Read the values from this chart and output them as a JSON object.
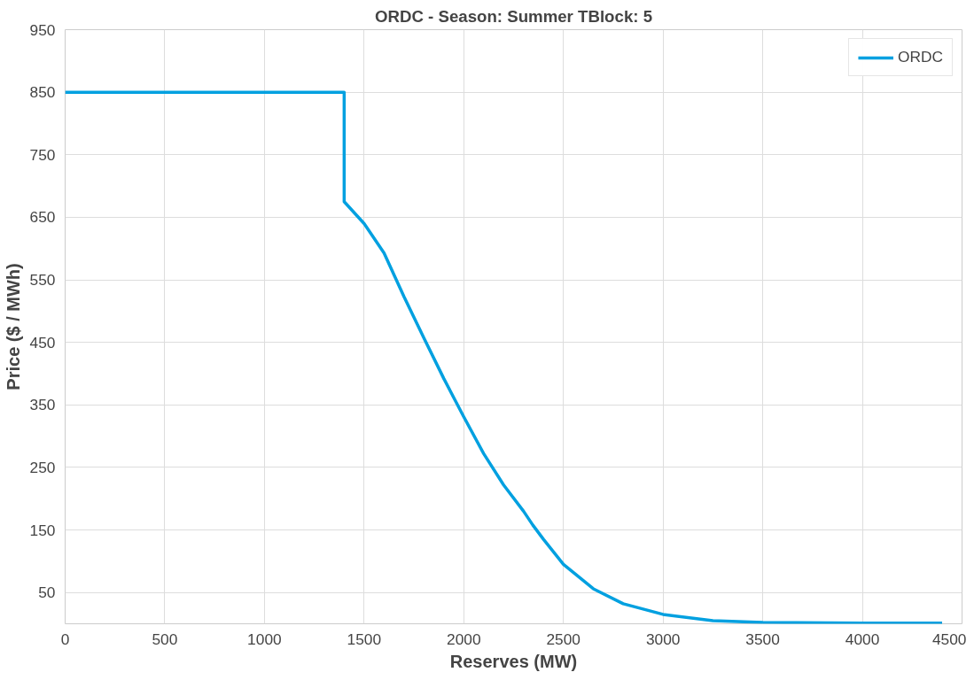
{
  "chart_data": {
    "type": "line",
    "title": "ORDC - Season: Summer TBlock: 5",
    "xlabel": "Reserves (MW)",
    "ylabel": "Price ($ / MWh)",
    "xlim": [
      0,
      4500
    ],
    "ylim": [
      0,
      950
    ],
    "xticks": [
      0,
      500,
      1000,
      1500,
      2000,
      2500,
      3000,
      3500,
      4000,
      4500
    ],
    "yticks": [
      50,
      150,
      250,
      350,
      450,
      550,
      650,
      750,
      850,
      950
    ],
    "grid": true,
    "legend": "top right",
    "line_style": "solid",
    "series": [
      {
        "name": "ORDC",
        "color": "#00a0e0",
        "x": [
          0,
          1400,
          1400,
          1500,
          1600,
          1700,
          1800,
          1900,
          2000,
          2100,
          2200,
          2300,
          2346,
          2400,
          2500,
          2650,
          2800,
          3000,
          3250,
          3500,
          4000,
          4400
        ],
        "values": [
          850,
          850,
          675,
          640,
          593,
          523,
          457,
          392,
          331,
          272,
          222,
          180,
          158,
          135,
          95,
          56,
          32,
          15,
          5,
          2,
          1,
          1
        ]
      }
    ]
  }
}
